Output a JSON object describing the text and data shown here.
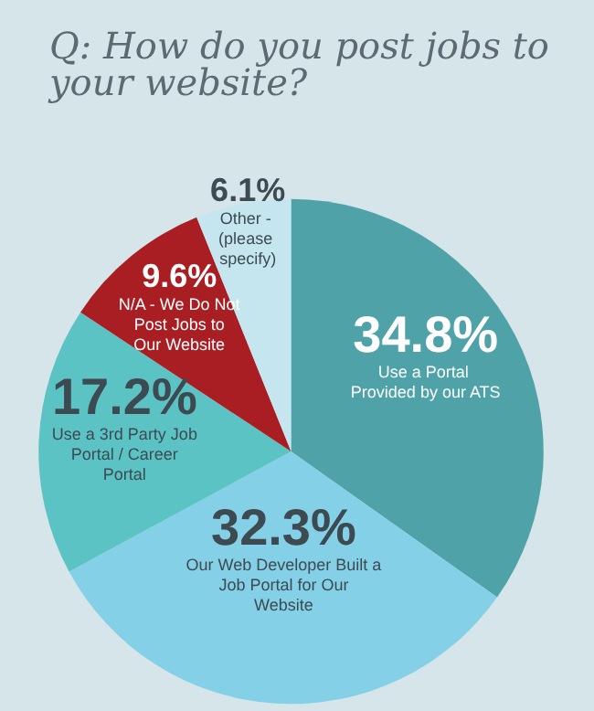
{
  "chart_data": {
    "type": "pie",
    "title": "Q: How do you post jobs to your website?",
    "categories": [
      "Use a Portal Provided by our ATS",
      "Our Web Developer Built a Job Portal for Our Website",
      "Use a 3rd Party Job Portal / Career Portal",
      "N/A - We Do Not Post Jobs to Our Website",
      "Other - (please specify)"
    ],
    "values": [
      34.8,
      32.3,
      17.2,
      9.6,
      6.1
    ],
    "value_labels": [
      "34.8%",
      "32.3%",
      "17.2%",
      "9.6%",
      "6.1%"
    ],
    "colors": [
      "#4fa3a8",
      "#84d0e6",
      "#5cc3c4",
      "#a81e22",
      "#c5e6ef"
    ],
    "legend": false
  }
}
